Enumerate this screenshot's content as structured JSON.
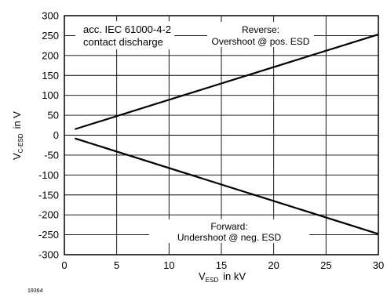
{
  "chart_data": {
    "type": "line",
    "xlim": [
      0,
      30
    ],
    "ylim": [
      -300,
      300
    ],
    "x_ticks": [
      "0",
      "5",
      "10",
      "15",
      "20",
      "25",
      "30"
    ],
    "y_ticks": [
      "300",
      "250",
      "200",
      "150",
      "100",
      "50",
      "0",
      "-50",
      "-100",
      "-150",
      "-200",
      "-250",
      "-300"
    ],
    "grid": true,
    "xlabel": {
      "main": "V",
      "sub": "ESD",
      "unit": "in  kV"
    },
    "ylabel": {
      "main": "V",
      "sub": "C-ESD",
      "unit": "in  V"
    },
    "series": [
      {
        "name": "Reverse: Overshoot @ pos. ESD",
        "x": [
          1,
          30
        ],
        "y": [
          15,
          253
        ]
      },
      {
        "name": "Forward: Undershoot @ neg. ESD",
        "x": [
          1,
          30
        ],
        "y": [
          -8,
          -248
        ]
      }
    ],
    "annotations": {
      "standard_line1": "acc. IEC 61000-4-2",
      "standard_line2": "contact discharge",
      "reverse_line1": "Reverse:",
      "reverse_line2": "Overshoot @ pos. ESD",
      "forward_line1": "Forward:",
      "forward_line2": "Undershoot @ neg. ESD"
    },
    "figure_id": "19364"
  }
}
